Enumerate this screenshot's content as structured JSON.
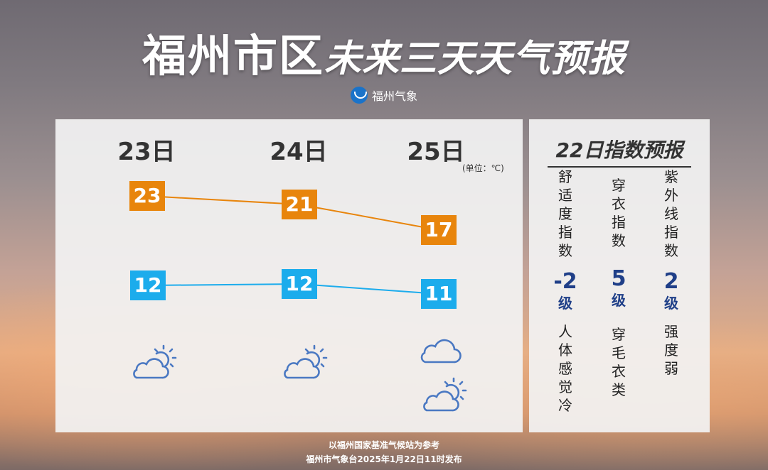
{
  "header": {
    "title_city": "福州市区",
    "title_rest": "未来三天天气预报",
    "brand": "福州气象"
  },
  "forecast": {
    "unit_label": "(单位：℃)",
    "days": [
      {
        "date": "23日",
        "high": "23",
        "low": "12",
        "icons": [
          "partly-cloudy-icon"
        ]
      },
      {
        "date": "24日",
        "high": "21",
        "low": "12",
        "icons": [
          "partly-cloudy-icon"
        ]
      },
      {
        "date": "25日",
        "high": "17",
        "low": "11",
        "icons": [
          "cloudy-icon",
          "partly-cloudy-icon"
        ]
      }
    ],
    "colors": {
      "high": "#e8850c",
      "low": "#1cacec",
      "icon": "#4a78c2"
    }
  },
  "indices": {
    "title": "22日指数预报",
    "items": [
      {
        "name": "舒适度指数",
        "level": "-2",
        "unit": "级",
        "desc": "人体感觉冷"
      },
      {
        "name": "穿衣指数",
        "level": "5",
        "unit": "级",
        "desc": "穿毛衣类"
      },
      {
        "name": "紫外线指数",
        "level": "2",
        "unit": "级",
        "desc": "强度弱"
      }
    ]
  },
  "footer": {
    "line1": "以福州国家基准气候站为参考",
    "line2": "福州市气象台2025年1月22日11时发布"
  }
}
